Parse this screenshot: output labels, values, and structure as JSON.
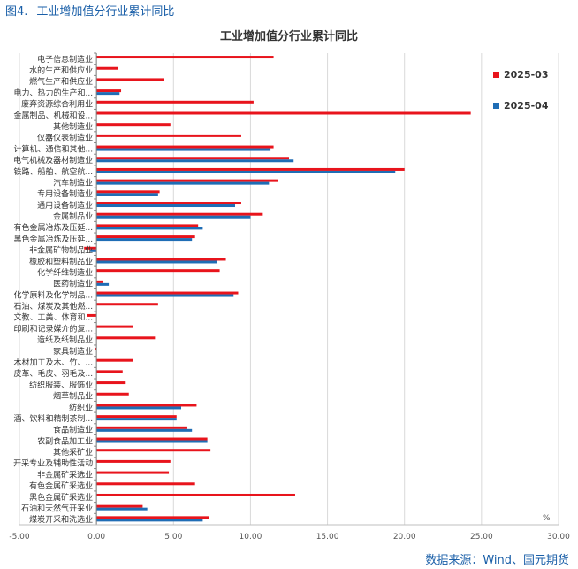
{
  "caption": {
    "number": "图4.",
    "text": "工业增加值分行业累计同比"
  },
  "source": "数据来源：Wind、国元期货",
  "chart_data": {
    "type": "bar",
    "orientation": "horizontal",
    "title": "工业增加值分行业累计同比",
    "unit_label": "%",
    "xlim": [
      -5,
      30
    ],
    "xticks": [
      "-5.00",
      "0.00",
      "5.00",
      "10.00",
      "15.00",
      "20.00",
      "25.00",
      "30.00"
    ],
    "grid": true,
    "legend_position": "right",
    "categories": [
      "电子信息制造业",
      "水的生产和供应业",
      "燃气生产和供应业",
      "电力、热力的生产和...",
      "废弃资源综合利用业",
      "金属制品、机械和设...",
      "其他制造业",
      "仪器仪表制造业",
      "计算机、通信和其他...",
      "电气机械及器材制造业",
      "铁路、船舶、航空航...",
      "汽车制造业",
      "专用设备制造业",
      "通用设备制造业",
      "金属制品业",
      "有色金属冶炼及压延...",
      "黑色金属冶炼及压延...",
      "非金属矿物制品业",
      "橡胶和塑料制品业",
      "化学纤维制造业",
      "医药制造业",
      "化学原料及化学制品...",
      "石油、煤炭及其他燃...",
      "文教、工美、体育和...",
      "印刷和记录媒介的复...",
      "造纸及纸制品业",
      "家具制造业",
      "木材加工及木、竹、...",
      "皮革、毛皮、羽毛及...",
      "纺织服装、服饰业",
      "烟草制品业",
      "纺织业",
      "酒、饮料和精制茶制...",
      "食品制造业",
      "农副食品加工业",
      "其他采矿业",
      "开采专业及辅助性活动",
      "非金属矿采选业",
      "有色金属矿采选业",
      "黑色金属矿采选业",
      "石油和天然气开采业",
      "煤炭开采和洗选业"
    ],
    "series": [
      {
        "name": "2025-03",
        "color": "#e8141c",
        "values": [
          11.5,
          1.4,
          4.4,
          1.6,
          10.2,
          24.3,
          4.8,
          9.4,
          11.5,
          12.5,
          20.0,
          11.8,
          4.1,
          9.4,
          10.8,
          6.6,
          6.4,
          -0.8,
          8.4,
          8.0,
          0.4,
          9.2,
          4.0,
          -0.6,
          2.4,
          3.8,
          -0.1,
          2.4,
          1.7,
          1.9,
          2.1,
          6.5,
          5.2,
          5.9,
          7.2,
          7.4,
          4.8,
          4.7,
          6.4,
          12.9,
          3.0,
          7.3
        ]
      },
      {
        "name": "2025-04",
        "color": "#1f6db5",
        "values": [
          null,
          null,
          null,
          1.5,
          null,
          null,
          null,
          null,
          11.3,
          12.8,
          19.4,
          11.2,
          4.0,
          9.0,
          10.0,
          6.9,
          6.2,
          -0.4,
          7.8,
          null,
          0.8,
          8.9,
          null,
          null,
          null,
          null,
          null,
          null,
          null,
          null,
          null,
          5.5,
          5.2,
          6.2,
          7.2,
          null,
          null,
          null,
          null,
          null,
          3.3,
          6.9
        ]
      }
    ]
  }
}
